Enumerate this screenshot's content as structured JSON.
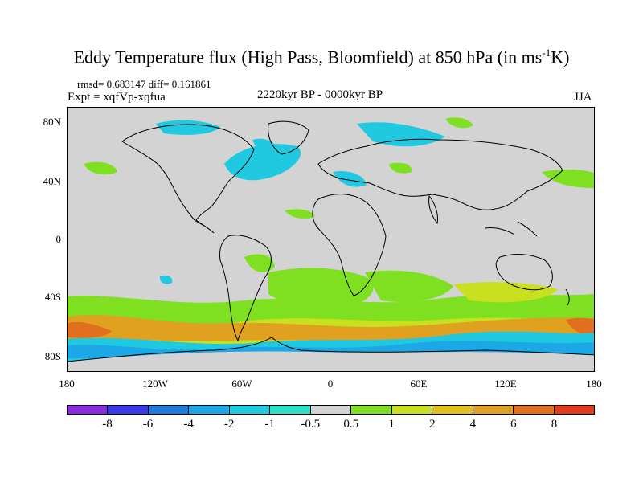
{
  "title": {
    "main": "Eddy Temperature flux (High Pass, Bloomfield) at 850 hPa (in ms",
    "sup": "-1",
    "end": "K)"
  },
  "stats": "rmsd= 0.683147 diff= 0.161861",
  "expt": "Expt = xqfVp-xqfua",
  "period": "2220kyr BP - 0000kyr BP",
  "season": "JJA",
  "map": {
    "lat_ticks": [
      "80N",
      "40N",
      "0",
      "40S",
      "80S"
    ],
    "lon_ticks": [
      "180",
      "120W",
      "60W",
      "0",
      "60E",
      "120E",
      "180"
    ],
    "land_color": "#d3d3d3",
    "coast_color": "#000000"
  },
  "colorbar": {
    "colors": [
      "#8a2be2",
      "#3a3ae8",
      "#1c7cdc",
      "#1ca8e6",
      "#20c8e0",
      "#2ee0c8",
      "#d3d3d3",
      "#7ee020",
      "#c8e020",
      "#e0c020",
      "#e0a020",
      "#e07020",
      "#e03c1c"
    ],
    "labels": [
      "-8",
      "-6",
      "-4",
      "-2",
      "-1",
      "-0.5",
      "0.5",
      "1",
      "2",
      "4",
      "6",
      "8"
    ]
  }
}
